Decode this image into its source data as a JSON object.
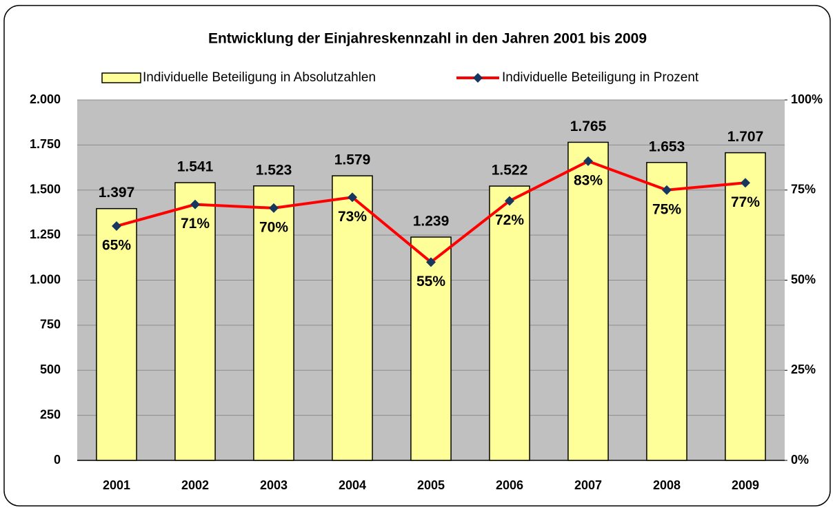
{
  "chart_data": {
    "type": "bar",
    "title": "Entwicklung der Einjahreskennzahl in den Jahren 2001 bis 2009",
    "categories": [
      "2001",
      "2002",
      "2003",
      "2004",
      "2005",
      "2006",
      "2007",
      "2008",
      "2009"
    ],
    "series": [
      {
        "name": "Individuelle Beteiligung in  Absolutzahlen",
        "type": "bar",
        "color": "#ffff99",
        "values": [
          1397,
          1541,
          1523,
          1579,
          1239,
          1522,
          1765,
          1653,
          1707
        ],
        "value_labels": [
          "1.397",
          "1.541",
          "1.523",
          "1.579",
          "1.239",
          "1.522",
          "1.765",
          "1.653",
          "1.707"
        ]
      },
      {
        "name": "Individuelle Beteiligung in  Prozent",
        "type": "line",
        "color": "#ff0000",
        "marker_color": "#17375e",
        "axis": "y2",
        "values": [
          65,
          71,
          70,
          73,
          55,
          72,
          83,
          75,
          77
        ],
        "value_labels": [
          "65%",
          "71%",
          "70%",
          "73%",
          "55%",
          "72%",
          "83%",
          "75%",
          "77%"
        ]
      }
    ],
    "ylim": [
      0,
      2000
    ],
    "yticks": [
      0,
      250,
      500,
      750,
      {
        "value": 1000,
        "label": "1.000"
      },
      {
        "value": 1250,
        "label": "1.250"
      },
      {
        "value": 1500,
        "label": "1.500"
      },
      {
        "value": 1750,
        "label": "1.750"
      },
      {
        "value": 2000,
        "label": "2.000"
      }
    ],
    "y2lim": [
      0,
      100
    ],
    "y2ticks": [
      {
        "value": 0,
        "label": "0%"
      },
      {
        "value": 25,
        "label": "25%"
      },
      {
        "value": 50,
        "label": "50%"
      },
      {
        "value": 75,
        "label": "75%"
      },
      {
        "value": 100,
        "label": "100%"
      }
    ],
    "grid": true,
    "legend": "top",
    "plot_background": "#c0c0c0"
  }
}
